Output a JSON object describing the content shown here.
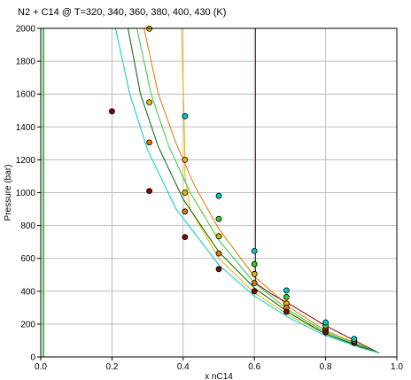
{
  "chart_data": {
    "type": "scatter",
    "title": "N2 + C14 @ T=320, 340, 360, 380, 400, 430  (K)",
    "xlabel": "x nC14",
    "ylabel": "Pressure (bar)",
    "xlim": [
      0.0,
      1.0
    ],
    "ylim": [
      0,
      2000
    ],
    "xticks": [
      0.0,
      0.2,
      0.4,
      0.6,
      0.8,
      1.0
    ],
    "xtick_labels": [
      "0.0",
      "0.2",
      "0.4",
      "0.6",
      "0.8",
      "1.0"
    ],
    "yticks": [
      0,
      200,
      400,
      600,
      800,
      1000,
      1200,
      1400,
      1600,
      1800,
      2000
    ],
    "ytick_labels": [
      "0",
      "200",
      "400",
      "600",
      "800",
      "1000",
      "1200",
      "1400",
      "1600",
      "1800",
      "2000"
    ],
    "grid": true,
    "legend": "none",
    "series": [
      {
        "color": "#e8b400",
        "line": [
          [
            0.395,
            2000
          ],
          [
            0.402,
            1500
          ],
          [
            0.405,
            1200
          ],
          [
            0.405,
            1100
          ],
          [
            0.42,
            900
          ],
          [
            0.5,
            600
          ],
          [
            0.6,
            390
          ],
          [
            0.7,
            250
          ],
          [
            0.8,
            140
          ],
          [
            0.9,
            60
          ],
          [
            0.95,
            25
          ]
        ],
        "points": [
          [
            0.305,
            1998
          ],
          [
            0.305,
            1550
          ],
          [
            0.405,
            1200
          ],
          [
            0.405,
            1000
          ],
          [
            0.5,
            735
          ],
          [
            0.6,
            505
          ],
          [
            0.69,
            325
          ],
          [
            0.8,
            170
          ],
          [
            0.88,
            95
          ]
        ]
      },
      {
        "color": "#e07800",
        "line": [
          [
            0.29,
            2000
          ],
          [
            0.33,
            1600
          ],
          [
            0.38,
            1300
          ],
          [
            0.43,
            1050
          ],
          [
            0.5,
            780
          ],
          [
            0.6,
            490
          ],
          [
            0.7,
            300
          ],
          [
            0.8,
            160
          ],
          [
            0.9,
            70
          ],
          [
            0.95,
            25
          ]
        ],
        "points": [
          [
            0.305,
            1305
          ],
          [
            0.405,
            885
          ],
          [
            0.5,
            630
          ],
          [
            0.6,
            450
          ],
          [
            0.69,
            300
          ],
          [
            0.8,
            160
          ],
          [
            0.88,
            90
          ]
        ]
      },
      {
        "color": "#8b0000",
        "line": [
          [
            0.603,
            2000
          ],
          [
            0.603,
            450
          ],
          [
            0.65,
            380
          ],
          [
            0.7,
            320
          ],
          [
            0.8,
            190
          ],
          [
            0.9,
            80
          ],
          [
            0.95,
            25
          ]
        ],
        "points": [
          [
            0.2,
            1495
          ],
          [
            0.305,
            1010
          ],
          [
            0.405,
            730
          ],
          [
            0.5,
            535
          ],
          [
            0.6,
            400
          ],
          [
            0.69,
            275
          ],
          [
            0.8,
            150
          ],
          [
            0.88,
            85
          ]
        ]
      },
      {
        "color": "#33cc33",
        "line": [
          [
            0.27,
            2000
          ],
          [
            0.31,
            1600
          ],
          [
            0.36,
            1280
          ],
          [
            0.42,
            1000
          ],
          [
            0.5,
            710
          ],
          [
            0.6,
            450
          ],
          [
            0.7,
            280
          ],
          [
            0.8,
            150
          ],
          [
            0.9,
            65
          ],
          [
            0.95,
            25
          ]
        ],
        "points": [
          [
            0.5,
            840
          ],
          [
            0.6,
            565
          ],
          [
            0.69,
            365
          ],
          [
            0.8,
            190
          ],
          [
            0.88,
            100
          ]
        ]
      },
      {
        "color": "#006400",
        "line": [
          [
            0.245,
            2000
          ],
          [
            0.28,
            1600
          ],
          [
            0.33,
            1280
          ],
          [
            0.4,
            960
          ],
          [
            0.5,
            640
          ],
          [
            0.6,
            420
          ],
          [
            0.7,
            265
          ],
          [
            0.8,
            140
          ],
          [
            0.9,
            60
          ],
          [
            0.95,
            25
          ]
        ],
        "points": []
      },
      {
        "color": "#00cccc",
        "line": [
          [
            0.21,
            2000
          ],
          [
            0.25,
            1600
          ],
          [
            0.3,
            1260
          ],
          [
            0.38,
            900
          ],
          [
            0.5,
            560
          ],
          [
            0.6,
            370
          ],
          [
            0.7,
            235
          ],
          [
            0.8,
            130
          ],
          [
            0.9,
            55
          ],
          [
            0.95,
            25
          ]
        ],
        "points": [
          [
            0.405,
            1465
          ],
          [
            0.5,
            980
          ],
          [
            0.6,
            645
          ],
          [
            0.69,
            405
          ],
          [
            0.8,
            210
          ],
          [
            0.88,
            110
          ]
        ]
      }
    ],
    "left_edge_line_color": "#00aa00"
  }
}
